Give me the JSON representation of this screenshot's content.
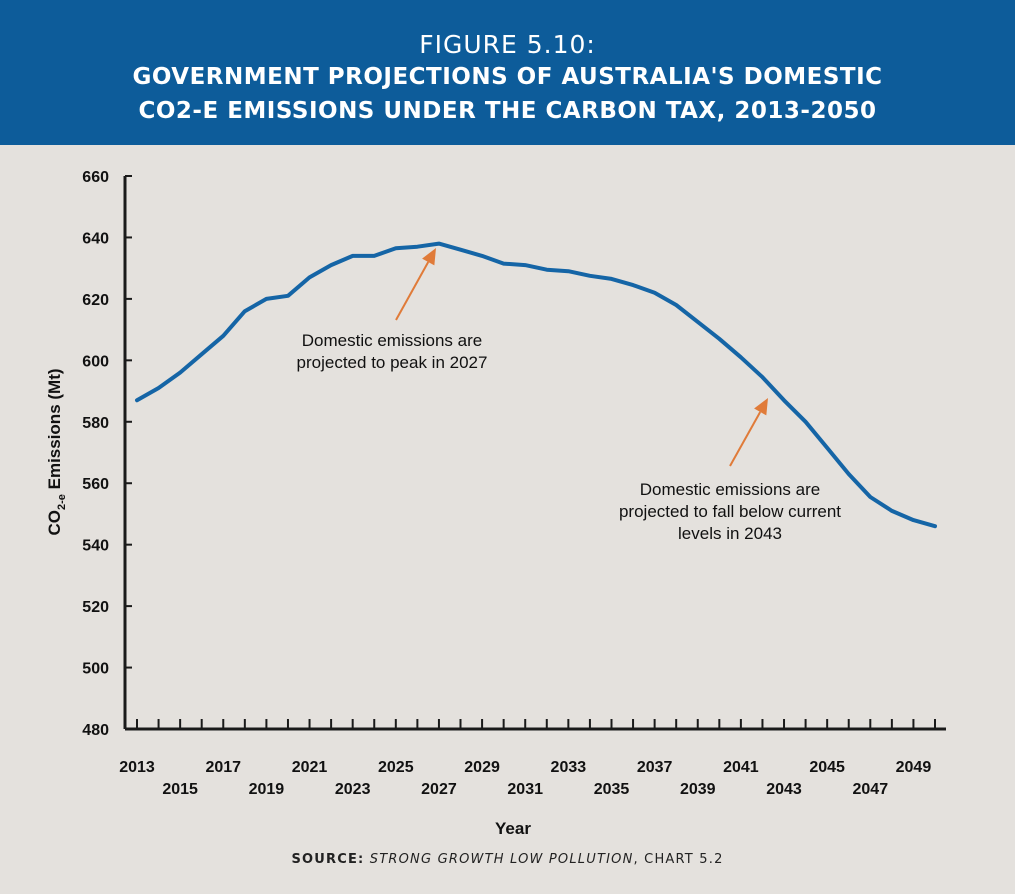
{
  "figure_label": "FIGURE 5.10:",
  "title_line_1": "GOVERNMENT PROJECTIONS OF AUSTRALIA'S DOMESTIC",
  "title_line_2": "CO2-E EMISSIONS UNDER THE CARBON TAX, 2013-2050",
  "source_label": "SOURCE:",
  "source_title": "STRONG GROWTH LOW POLLUTION",
  "source_rest": ", CHART 5.2",
  "colors": {
    "banner": "#0d5c9a",
    "background": "#e4e1dd",
    "line": "#1565a6",
    "arrow": "#e07b39"
  },
  "chart_data": {
    "type": "line",
    "xlabel": "Year",
    "ylabel": "CO2-e Emissions (Mt)",
    "ylabel_parts": {
      "pre": "CO",
      "sub": "2-e",
      "post": " Emissions (Mt)"
    },
    "ylim": [
      480,
      660
    ],
    "yticks": [
      "480",
      "500",
      "520",
      "540",
      "560",
      "580",
      "600",
      "620",
      "640",
      "660"
    ],
    "xlim": [
      2013,
      2050
    ],
    "xticks": [
      "2013",
      "2015",
      "2017",
      "2019",
      "2021",
      "2023",
      "2025",
      "2027",
      "2029",
      "2031",
      "2033",
      "2035",
      "2037",
      "2039",
      "2041",
      "2043",
      "2045",
      "2047",
      "2049"
    ],
    "grid": false,
    "series": [
      {
        "x": [
          2013,
          2014,
          2015,
          2016,
          2017,
          2018,
          2019,
          2020,
          2021,
          2022,
          2023,
          2024,
          2025,
          2026,
          2027,
          2028,
          2029,
          2030,
          2031,
          2032,
          2033,
          2034,
          2035,
          2036,
          2037,
          2038,
          2039,
          2040,
          2041,
          2042,
          2043,
          2044,
          2045,
          2046,
          2047,
          2048,
          2049,
          2050
        ],
        "values": [
          587,
          591,
          596,
          602,
          608,
          616,
          620,
          621,
          627,
          631,
          634,
          634,
          636.5,
          637,
          638,
          636,
          634,
          631.5,
          631,
          629.5,
          629,
          627.5,
          626.5,
          624.5,
          622,
          618,
          612.5,
          607,
          601,
          594.5,
          587,
          580,
          571.5,
          563,
          555.5,
          551,
          548,
          546
        ]
      }
    ],
    "annotations": [
      {
        "id": "peak",
        "lines": [
          "Domestic emissions are",
          "projected to peak in 2027"
        ],
        "target_year": 2027
      },
      {
        "id": "fall",
        "lines": [
          "Domestic emissions are",
          "projected to fall below current",
          "levels in 2043"
        ],
        "target_year": 2043
      }
    ]
  }
}
